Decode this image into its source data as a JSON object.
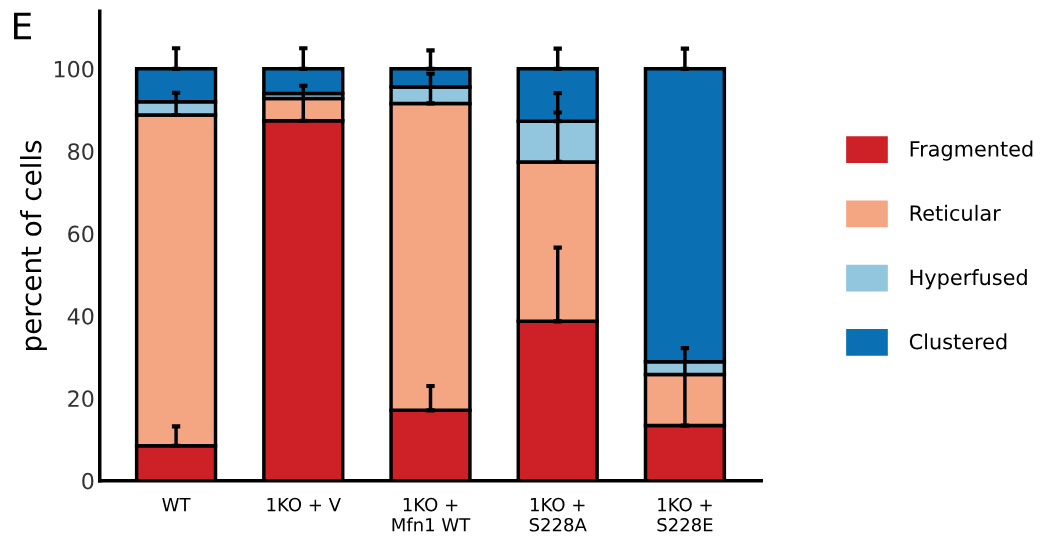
{
  "chart_data": {
    "type": "bar",
    "stacked": true,
    "ylabel": "percent of cells",
    "annotations": [
      "E"
    ],
    "categories": [
      "WT",
      "1KO + V",
      "1KO +\nMfn1 WT",
      "1KO +\nS228A",
      "1KO +\nS228E"
    ],
    "series": [
      {
        "name": "Fragmented",
        "color": "#cd2027",
        "values": [
          8.5,
          87.4,
          17.1,
          38.7,
          13.4
        ],
        "errors": [
          [
            8.5,
            13.2
          ],
          [
            87.4,
            95.9
          ],
          [
            17.1,
            23
          ],
          [
            38.7,
            56.6
          ],
          [
            13.4,
            32.2
          ]
        ]
      },
      {
        "name": "Reticular",
        "color": "#f4a683",
        "values": [
          80.3,
          5.4,
          74.5,
          38.7,
          12.4
        ],
        "errors": [
          [
            88.8,
            94.2
          ],
          null,
          [
            91.6,
            98.8
          ],
          [
            77.4,
            94.1
          ],
          null
        ]
      },
      {
        "name": "Hyperfused",
        "color": "#92c5de",
        "values": [
          3.2,
          1.2,
          4,
          9.9,
          3.1
        ],
        "errors": [
          null,
          null,
          null,
          [
            87.3,
            89.4
          ],
          null
        ]
      },
      {
        "name": "Clustered",
        "color": "#0b70b3",
        "values": [
          8,
          6,
          4.4,
          12.7,
          71.1
        ],
        "errors": [
          [
            100,
            105
          ],
          [
            100,
            105
          ],
          [
            100,
            104.5
          ],
          [
            100,
            104.9
          ],
          [
            100,
            104.9
          ]
        ]
      }
    ],
    "ylim": [
      0,
      114
    ],
    "yticks": [
      0,
      20,
      40,
      60,
      80,
      100
    ],
    "grid": false,
    "legend": "right"
  }
}
